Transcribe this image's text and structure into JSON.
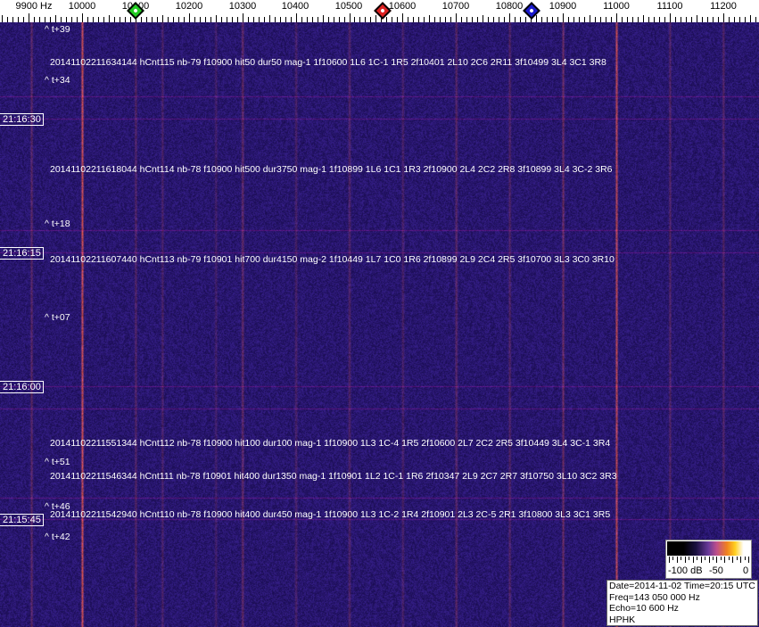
{
  "freq_axis": {
    "unit_label": "9900 Hz",
    "labels": [
      "10000",
      "10100",
      "10200",
      "10300",
      "10400",
      "10500",
      "10600",
      "10700",
      "10800",
      "10900",
      "11000",
      "11100",
      "11200"
    ]
  },
  "markers": [
    {
      "name": "green-marker",
      "color": "#22cc22",
      "freq_hz": 10100
    },
    {
      "name": "red-marker",
      "color": "#dd2222",
      "freq_hz": 10562
    },
    {
      "name": "blue-marker",
      "color": "#1a1acc",
      "freq_hz": 10840
    }
  ],
  "time_labels": [
    "21:16:30",
    "21:16:15",
    "21:16:00",
    "21:15:45"
  ],
  "offset_markers": [
    "^ t+39",
    "^ t+34",
    "^ t+18",
    "^ t+07",
    "^ t+51",
    "^ t+46",
    "^ t+42"
  ],
  "detections": [
    "20141102211634144 hCnt115 nb-79 f10900 hit50 dur50 mag-1 1f10600 1L6 1C-1 1R5 2f10401 2L10 2C6 2R11 3f10499 3L4 3C1 3R8",
    "20141102211618044 hCnt114 nb-78 f10900 hit500 dur3750 mag-1 1f10899 1L6 1C1 1R3 2f10900 2L4 2C2 2R8 3f10899 3L4 3C-2 3R6",
    "20141102211607440 hCnt113 nb-79 f10901 hit700 dur4150 mag-2 1f10449 1L7 1C0 1R6 2f10899 2L9 2C4 2R5 3f10700 3L3 3C0 3R10",
    "20141102211551344 hCnt112 nb-78 f10900 hit100 dur100 mag-1 1f10900 1L3 1C-4 1R5 2f10600 2L7 2C2 2R5 3f10449 3L4 3C-1 3R4",
    "20141102211546344 hCnt111 nb-78 f10901 hit400 dur1350 mag-1 1f10901 1L2 1C-1 1R6 2f10347 2L9 2C7 2R7 3f10750 3L10 3C2 3R3",
    "20141102211542940 hCnt110 nb-78 f10900 hit400 dur450 mag-1 1f10900 1L3 1C-2 1R4 2f10901 2L3 2C-5 2R1 3f10800 3L3 3C1 3R5"
  ],
  "colorbar": {
    "labels": [
      "-100 dB",
      "-50",
      "0"
    ]
  },
  "info": {
    "datetime": "Date=2014-11-02 Time=20:15 UTC",
    "freq": "Freq=143 050 000 Hz",
    "echo": "Echo=10 600 Hz",
    "station": "HPHK"
  },
  "colors": {
    "background": "#2a1a7a",
    "carrier": "#e86a4a"
  }
}
